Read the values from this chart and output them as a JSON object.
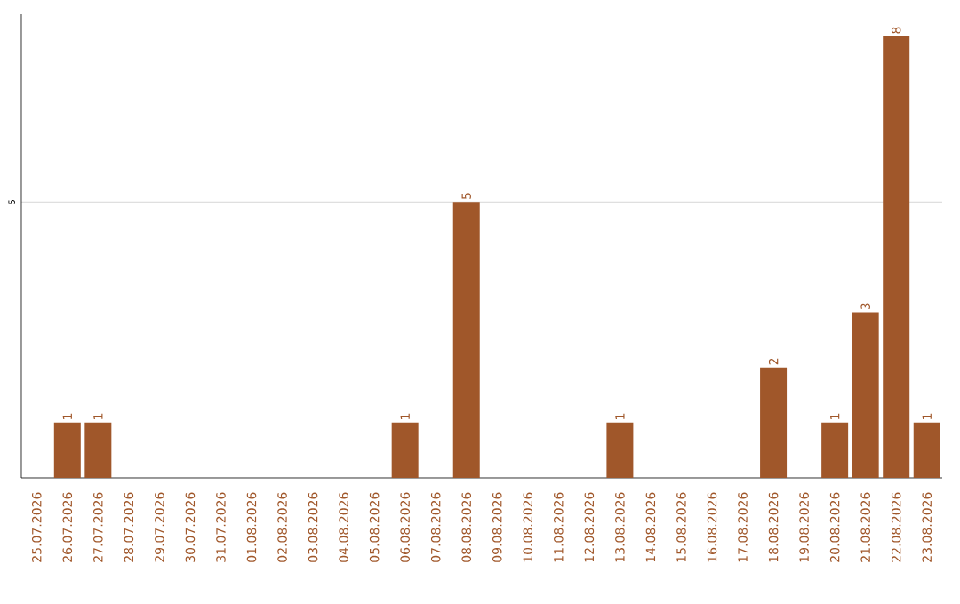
{
  "chart_data": {
    "type": "bar",
    "categories": [
      "25.07.2026",
      "26.07.2026",
      "27.07.2026",
      "28.07.2026",
      "29.07.2026",
      "30.07.2026",
      "31.07.2026",
      "01.08.2026",
      "02.08.2026",
      "03.08.2026",
      "04.08.2026",
      "05.08.2026",
      "06.08.2026",
      "07.08.2026",
      "08.08.2026",
      "09.08.2026",
      "10.08.2026",
      "11.08.2026",
      "12.08.2026",
      "13.08.2026",
      "14.08.2026",
      "15.08.2026",
      "16.08.2026",
      "17.08.2026",
      "18.08.2026",
      "19.08.2026",
      "20.08.2026",
      "21.08.2026",
      "22.08.2026",
      "23.08.2026"
    ],
    "values": [
      0,
      1,
      1,
      0,
      0,
      0,
      0,
      0,
      0,
      0,
      0,
      0,
      1,
      0,
      5,
      0,
      0,
      0,
      0,
      1,
      0,
      0,
      0,
      0,
      2,
      0,
      1,
      3,
      8,
      1
    ],
    "value_labels": [
      null,
      "1",
      "1",
      null,
      null,
      null,
      null,
      null,
      null,
      null,
      null,
      null,
      "1",
      null,
      "5",
      null,
      null,
      null,
      null,
      "1",
      null,
      null,
      null,
      null,
      "2",
      null,
      "1",
      "3",
      "8",
      "1"
    ],
    "color": "#a0572a",
    "ylim": [
      0,
      8.4
    ],
    "yticks": [
      5
    ],
    "grid": "y"
  }
}
